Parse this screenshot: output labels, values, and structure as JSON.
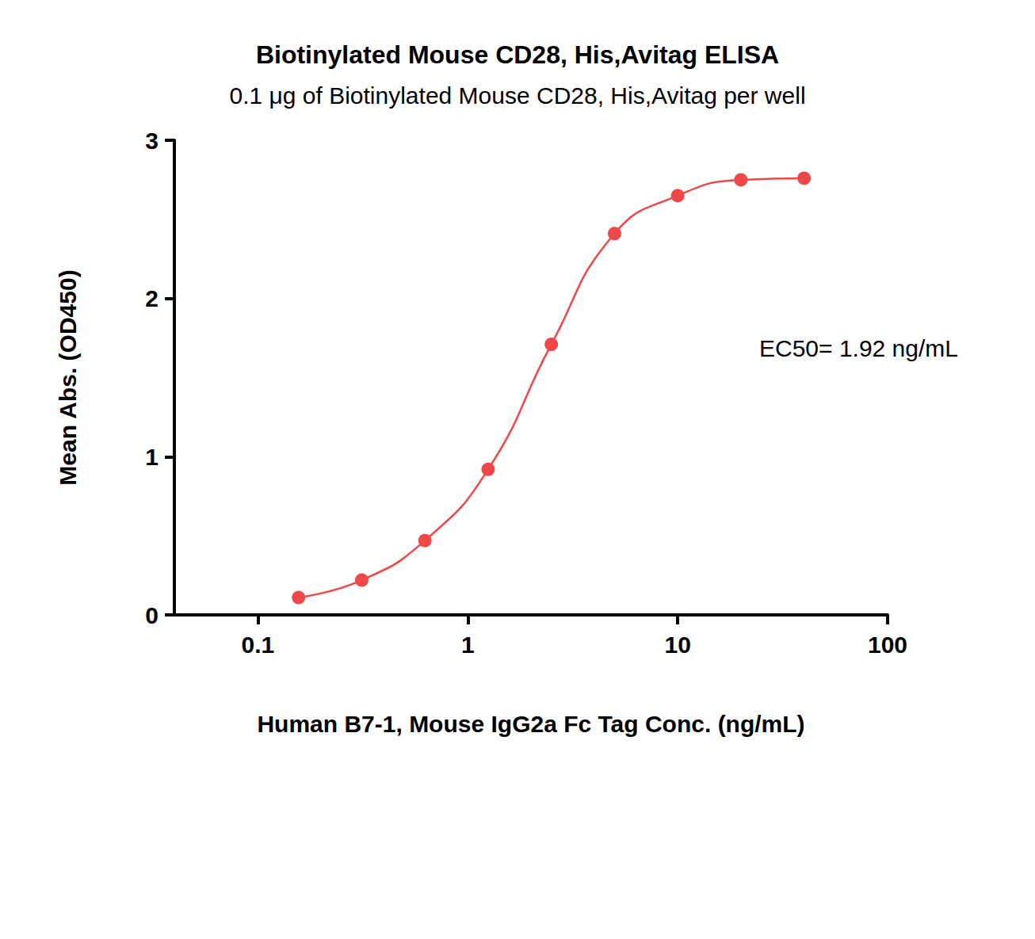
{
  "chart_data": {
    "type": "line",
    "title": "Biotinylated Mouse CD28, His,Avitag ELISA",
    "subtitle": "0.1 μg of Biotinylated Mouse CD28, His,Avitag per well",
    "x_label": "Human B7-1, Mouse IgG2a Fc Tag Conc. (ng/mL)",
    "y_label": "Mean Abs. (OD450)",
    "annotation": "EC50= 1.92 ng/mL",
    "x": [
      0.15625,
      0.3125,
      0.625,
      1.25,
      2.5,
      5,
      10,
      20,
      40
    ],
    "values": [
      0.11,
      0.22,
      0.47,
      0.92,
      1.71,
      2.41,
      2.65,
      2.75,
      2.76
    ],
    "color": "#f04848",
    "marker": "circle",
    "line_style": "smooth",
    "log": "x",
    "xlim": [
      0.04,
      100
    ],
    "xticks": [
      0.1,
      1,
      10,
      100
    ],
    "ylim": [
      0,
      3
    ],
    "yticks": [
      0,
      1,
      2,
      3
    ],
    "grid": false
  }
}
